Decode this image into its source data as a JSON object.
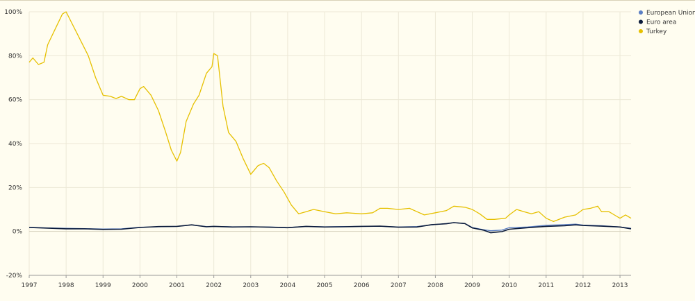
{
  "chart_data": {
    "type": "line",
    "title": "",
    "xlabel": "",
    "ylabel": "",
    "xlim": [
      1997.0,
      2013.3
    ],
    "ylim": [
      -20,
      100
    ],
    "x_ticks": [
      1997,
      1998,
      1999,
      2000,
      2001,
      2002,
      2003,
      2004,
      2005,
      2006,
      2007,
      2008,
      2009,
      2010,
      2011,
      2012,
      2013
    ],
    "x_tick_labels": [
      "1997",
      "1998",
      "1999",
      "2000",
      "2001",
      "2002",
      "2003",
      "2004",
      "2005",
      "2006",
      "2007",
      "2008",
      "2009",
      "2010",
      "2011",
      "2012",
      "2013"
    ],
    "y_ticks": [
      -20,
      0,
      20,
      40,
      60,
      80,
      100
    ],
    "y_tick_labels": [
      "-20%",
      "0%",
      "20%",
      "40%",
      "60%",
      "80%",
      "100%"
    ],
    "grid": true,
    "legend_position": "top-right",
    "series": [
      {
        "name": "European Union",
        "color": "#5b7fc4",
        "points": [
          [
            1997.0,
            1.9
          ],
          [
            1997.5,
            1.6
          ],
          [
            1998.0,
            1.4
          ],
          [
            1998.5,
            1.3
          ],
          [
            1999.0,
            1.1
          ],
          [
            1999.5,
            1.2
          ],
          [
            2000.0,
            1.9
          ],
          [
            2000.5,
            2.1
          ],
          [
            2001.0,
            2.3
          ],
          [
            2001.4,
            3.0
          ],
          [
            2001.8,
            2.2
          ],
          [
            2002.0,
            2.3
          ],
          [
            2002.5,
            2.1
          ],
          [
            2003.0,
            2.1
          ],
          [
            2003.5,
            2.0
          ],
          [
            2004.0,
            1.8
          ],
          [
            2004.5,
            2.3
          ],
          [
            2005.0,
            2.1
          ],
          [
            2005.5,
            2.2
          ],
          [
            2006.0,
            2.3
          ],
          [
            2006.5,
            2.4
          ],
          [
            2007.0,
            2.0
          ],
          [
            2007.5,
            2.2
          ],
          [
            2007.9,
            3.0
          ],
          [
            2008.3,
            3.6
          ],
          [
            2008.5,
            4.0
          ],
          [
            2008.8,
            3.6
          ],
          [
            2009.0,
            1.8
          ],
          [
            2009.3,
            0.8
          ],
          [
            2009.5,
            0.3
          ],
          [
            2009.8,
            0.6
          ],
          [
            2010.0,
            1.7
          ],
          [
            2010.5,
            2.0
          ],
          [
            2011.0,
            2.8
          ],
          [
            2011.5,
            3.1
          ],
          [
            2011.8,
            3.3
          ],
          [
            2012.0,
            2.9
          ],
          [
            2012.5,
            2.6
          ],
          [
            2013.0,
            2.0
          ],
          [
            2013.3,
            1.4
          ]
        ]
      },
      {
        "name": "Euro area",
        "color": "#0a1a3a",
        "points": [
          [
            1997.0,
            1.8
          ],
          [
            1997.5,
            1.5
          ],
          [
            1998.0,
            1.2
          ],
          [
            1998.5,
            1.2
          ],
          [
            1999.0,
            0.9
          ],
          [
            1999.5,
            1.0
          ],
          [
            2000.0,
            1.8
          ],
          [
            2000.5,
            2.2
          ],
          [
            2001.0,
            2.3
          ],
          [
            2001.4,
            3.0
          ],
          [
            2001.8,
            2.1
          ],
          [
            2002.0,
            2.3
          ],
          [
            2002.5,
            2.0
          ],
          [
            2003.0,
            2.1
          ],
          [
            2003.5,
            1.9
          ],
          [
            2004.0,
            1.7
          ],
          [
            2004.5,
            2.3
          ],
          [
            2005.0,
            2.0
          ],
          [
            2005.5,
            2.1
          ],
          [
            2006.0,
            2.3
          ],
          [
            2006.5,
            2.4
          ],
          [
            2007.0,
            1.9
          ],
          [
            2007.5,
            2.0
          ],
          [
            2007.9,
            3.1
          ],
          [
            2008.3,
            3.5
          ],
          [
            2008.5,
            4.0
          ],
          [
            2008.8,
            3.6
          ],
          [
            2009.0,
            1.6
          ],
          [
            2009.3,
            0.6
          ],
          [
            2009.5,
            -0.6
          ],
          [
            2009.8,
            -0.1
          ],
          [
            2010.0,
            1.0
          ],
          [
            2010.5,
            1.7
          ],
          [
            2011.0,
            2.3
          ],
          [
            2011.5,
            2.6
          ],
          [
            2011.8,
            3.0
          ],
          [
            2012.0,
            2.7
          ],
          [
            2012.5,
            2.4
          ],
          [
            2013.0,
            2.0
          ],
          [
            2013.3,
            1.2
          ]
        ]
      },
      {
        "name": "Turkey",
        "color": "#e6c000",
        "points": [
          [
            1997.0,
            77
          ],
          [
            1997.1,
            79
          ],
          [
            1997.25,
            76
          ],
          [
            1997.4,
            77
          ],
          [
            1997.5,
            85
          ],
          [
            1997.7,
            92
          ],
          [
            1997.9,
            99
          ],
          [
            1998.0,
            100
          ],
          [
            1998.3,
            90
          ],
          [
            1998.6,
            80
          ],
          [
            1998.8,
            70
          ],
          [
            1999.0,
            62
          ],
          [
            1999.2,
            61.5
          ],
          [
            1999.35,
            60.5
          ],
          [
            1999.5,
            61.5
          ],
          [
            1999.7,
            60
          ],
          [
            1999.85,
            60
          ],
          [
            2000.0,
            65
          ],
          [
            2000.1,
            66
          ],
          [
            2000.3,
            62
          ],
          [
            2000.5,
            55
          ],
          [
            2000.7,
            45
          ],
          [
            2000.85,
            37
          ],
          [
            2001.0,
            32
          ],
          [
            2001.1,
            36
          ],
          [
            2001.25,
            50
          ],
          [
            2001.45,
            58
          ],
          [
            2001.6,
            62
          ],
          [
            2001.8,
            72
          ],
          [
            2001.95,
            75
          ],
          [
            2002.0,
            81
          ],
          [
            2002.1,
            80
          ],
          [
            2002.25,
            57
          ],
          [
            2002.4,
            45
          ],
          [
            2002.6,
            41
          ],
          [
            2002.8,
            33
          ],
          [
            2003.0,
            26
          ],
          [
            2003.2,
            30
          ],
          [
            2003.35,
            31
          ],
          [
            2003.5,
            29
          ],
          [
            2003.7,
            23
          ],
          [
            2003.9,
            18
          ],
          [
            2004.1,
            12
          ],
          [
            2004.3,
            8
          ],
          [
            2004.5,
            9
          ],
          [
            2004.7,
            10
          ],
          [
            2005.0,
            9
          ],
          [
            2005.3,
            8
          ],
          [
            2005.6,
            8.5
          ],
          [
            2006.0,
            8
          ],
          [
            2006.3,
            8.5
          ],
          [
            2006.5,
            10.5
          ],
          [
            2006.7,
            10.5
          ],
          [
            2007.0,
            10
          ],
          [
            2007.3,
            10.5
          ],
          [
            2007.5,
            9
          ],
          [
            2007.7,
            7.5
          ],
          [
            2008.0,
            8.5
          ],
          [
            2008.3,
            9.5
          ],
          [
            2008.5,
            11.5
          ],
          [
            2008.8,
            11
          ],
          [
            2009.0,
            10
          ],
          [
            2009.2,
            8
          ],
          [
            2009.4,
            5.5
          ],
          [
            2009.6,
            5.5
          ],
          [
            2009.9,
            6
          ],
          [
            2010.0,
            7.5
          ],
          [
            2010.2,
            10
          ],
          [
            2010.4,
            9
          ],
          [
            2010.6,
            8
          ],
          [
            2010.8,
            9
          ],
          [
            2011.0,
            6
          ],
          [
            2011.2,
            4.5
          ],
          [
            2011.5,
            6.5
          ],
          [
            2011.8,
            7.5
          ],
          [
            2012.0,
            10
          ],
          [
            2012.2,
            10.5
          ],
          [
            2012.4,
            11.5
          ],
          [
            2012.5,
            9
          ],
          [
            2012.7,
            9
          ],
          [
            2012.9,
            7
          ],
          [
            2013.0,
            6
          ],
          [
            2013.15,
            7.5
          ],
          [
            2013.3,
            6
          ]
        ]
      }
    ]
  }
}
